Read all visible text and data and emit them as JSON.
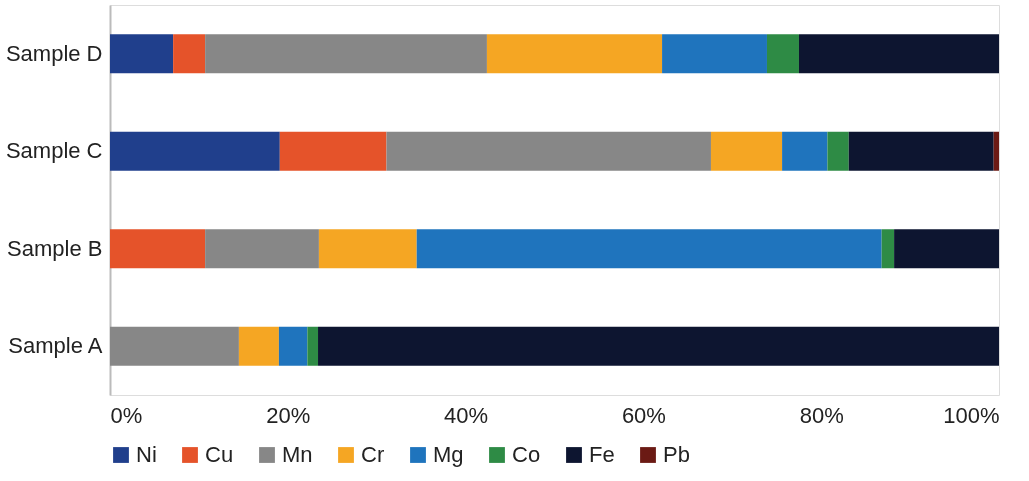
{
  "chart_data": {
    "type": "bar",
    "orientation": "horizontal",
    "stacked": true,
    "categories": [
      "Sample D",
      "Sample C",
      "Sample B",
      "Sample A"
    ],
    "series": [
      {
        "name": "Ni",
        "color": "#203f8c",
        "values": [
          7.1,
          19.1,
          null,
          null
        ]
      },
      {
        "name": "Cu",
        "color": "#e5532a",
        "values": [
          3.6,
          12.0,
          10.7,
          null
        ]
      },
      {
        "name": "Mn",
        "color": "#878787",
        "values": [
          31.7,
          36.5,
          12.8,
          14.5
        ]
      },
      {
        "name": "Cr",
        "color": "#f5a623",
        "values": [
          19.7,
          8.0,
          11.0,
          4.5
        ]
      },
      {
        "name": "Mg",
        "color": "#1f74bd",
        "values": [
          11.8,
          5.1,
          52.3,
          3.2
        ]
      },
      {
        "name": "Co",
        "color": "#2e8b45",
        "values": [
          3.6,
          2.4,
          1.4,
          1.2
        ]
      },
      {
        "name": "Fe",
        "color": "#0d1530",
        "values": [
          22.5,
          16.3,
          11.8,
          76.6
        ]
      },
      {
        "name": "Pb",
        "color": "#6b1a14",
        "values": [
          null,
          0.6,
          null,
          null
        ]
      }
    ],
    "xlim": [
      0,
      100
    ],
    "xticks": [
      {
        "value": 0,
        "label": "0%"
      },
      {
        "value": 20,
        "label": "20%"
      },
      {
        "value": 40,
        "label": "40%"
      },
      {
        "value": 60,
        "label": "60%"
      },
      {
        "value": 80,
        "label": "80%"
      },
      {
        "value": 100,
        "label": "100%"
      }
    ],
    "grid": false,
    "legend": "bottom"
  }
}
